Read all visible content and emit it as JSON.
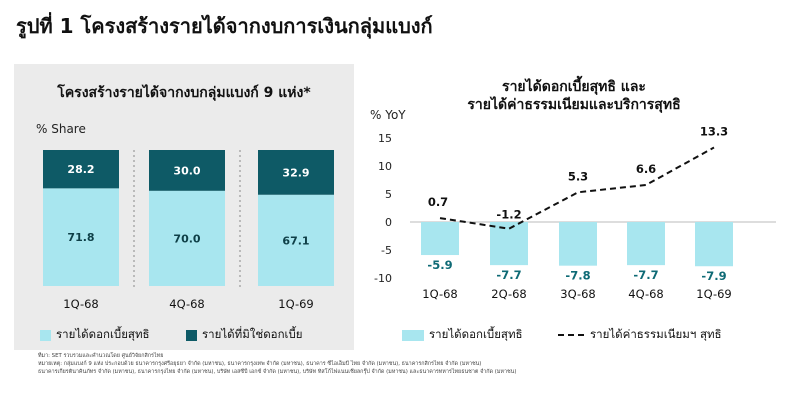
{
  "figure_title": "รูปที่ 1 โครงสร้างรายได้จากงบการเงินกลุ่มแบงก์",
  "colors": {
    "light": "#a8e6ef",
    "dark": "#0e5a66",
    "panel_bg": "#ebebeb",
    "text_dark_label": "#0e6a75"
  },
  "left_panel": {
    "title": "โครงสร้างรายได้จากงบกลุ่มแบงก์ 9 แห่ง*",
    "unit": "% Share",
    "legend_light": "รายได้ดอกเบี้ยสุทธิ",
    "legend_dark": "รายได้ที่มิใช่ดอกเบี้ย"
  },
  "right_panel": {
    "title_line1": "รายได้ดอกเบี้ยสุทธิ และ",
    "title_line2": "รายได้ค่าธรรมเนียมและบริการสุทธิ",
    "unit": "% YoY",
    "legend_bar": "รายได้ดอกเบี้ยสุทธิ",
    "legend_line": "รายได้ค่าธรรมเนียมฯ สุทธิ"
  },
  "footnotes": [
    "ที่มา: SET รวบรวมและคำนวณโดย ศูนย์วิจัยกสิกรไทย",
    "หมายเหตุ: กลุ่มแบงก์ 9 แห่ง ประกอบด้วย ธนาคารกรุงศรีอยุธยา จำกัด (มหาชน), ธนาคารกรุงเทพ จำกัด (มหาชน), ธนาคาร ซีไอเอ็มบี ไทย จำกัด (มหาชน), ธนาคารกสิกรไทย จำกัด (มหาชน)",
    "ธนาคารเกียรตินาคินภัทร จำกัด (มหาชน), ธนาคารกรุงไทย จำกัด (มหาชน), บริษัท เอสซีบี เอกซ์ จำกัด (มหาชน), บริษัท ทิสโก้ไฟแนนเชียลกรุ๊ป จำกัด (มหาชน) และธนาคารทหารไทยธนชาต จำกัด (มหาชน)"
  ],
  "chart_data": [
    {
      "type": "bar",
      "stacked": true,
      "title": "โครงสร้างรายได้จากงบกลุ่มแบงก์ 9 แห่ง*",
      "ylabel": "% Share",
      "ylim": [
        0,
        100
      ],
      "categories": [
        "1Q-68",
        "4Q-68",
        "1Q-69"
      ],
      "series": [
        {
          "name": "รายได้ดอกเบี้ยสุทธิ",
          "values": [
            71.8,
            70.0,
            67.1
          ],
          "labels": [
            "71.8",
            "70.0",
            "67.1"
          ]
        },
        {
          "name": "รายได้ที่มิใช่ดอกเบี้ย",
          "values": [
            28.2,
            30.0,
            32.9
          ],
          "labels": [
            "28.2",
            "30.0",
            "32.9"
          ]
        }
      ],
      "legend": "bottom"
    },
    {
      "type": "bar",
      "combo_line": true,
      "title": "รายได้ดอกเบี้ยสุทธิ และ รายได้ค่าธรรมเนียมและบริการสุทธิ",
      "ylabel": "% YoY",
      "ylim": [
        -10,
        15
      ],
      "yticks": [
        "-10",
        "-5",
        "0",
        "5",
        "10",
        "15"
      ],
      "categories": [
        "1Q-68",
        "2Q-68",
        "3Q-68",
        "4Q-68",
        "1Q-69"
      ],
      "series": [
        {
          "name": "รายได้ดอกเบี้ยสุทธิ",
          "kind": "bar",
          "values": [
            -5.9,
            -7.7,
            -7.8,
            -7.7,
            -7.9
          ],
          "labels": [
            "-5.9",
            "-7.7",
            "-7.8",
            "-7.7",
            "-7.9"
          ]
        },
        {
          "name": "รายได้ค่าธรรมเนียมฯ สุทธิ",
          "kind": "line",
          "style": "dashed",
          "values": [
            0.7,
            -1.2,
            5.3,
            6.6,
            13.3
          ],
          "labels": [
            "0.7",
            "-1.2",
            "5.3",
            "6.6",
            "13.3"
          ]
        }
      ],
      "legend": "bottom"
    }
  ]
}
